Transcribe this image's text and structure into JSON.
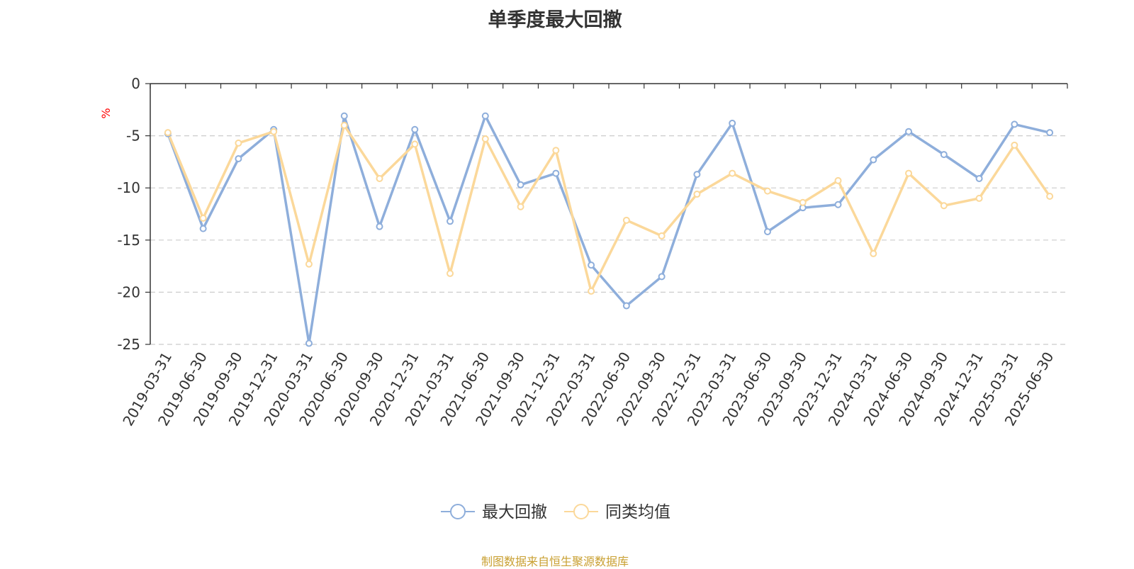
{
  "chart_data": {
    "type": "line",
    "title": "单季度最大回撤",
    "ylabel": "%",
    "ylim": [
      -25,
      0
    ],
    "yticks": [
      0,
      -5,
      -10,
      -15,
      -20,
      -25
    ],
    "grid": true,
    "legend_position": "bottom-center",
    "categories": [
      "2019-03-31",
      "2019-06-30",
      "2019-09-30",
      "2019-12-31",
      "2020-03-31",
      "2020-06-30",
      "2020-09-30",
      "2020-12-31",
      "2021-03-31",
      "2021-06-30",
      "2021-09-30",
      "2021-12-31",
      "2022-03-31",
      "2022-06-30",
      "2022-09-30",
      "2022-12-31",
      "2023-03-31",
      "2023-06-30",
      "2023-09-30",
      "2023-12-31",
      "2024-03-31",
      "2024-06-30",
      "2024-09-30",
      "2024-12-31",
      "2025-03-31",
      "2025-06-30"
    ],
    "series": [
      {
        "name": "最大回撤",
        "color": "#8eaedb",
        "values": [
          -4.8,
          -13.9,
          -7.2,
          -4.4,
          -24.9,
          -3.1,
          -13.7,
          -4.4,
          -13.2,
          -3.1,
          -9.7,
          -8.6,
          -17.4,
          -21.3,
          -18.5,
          -8.7,
          -3.8,
          -14.2,
          -11.9,
          -11.6,
          -7.3,
          -4.6,
          -6.8,
          -9.1,
          -3.9,
          -4.7
        ]
      },
      {
        "name": "同类均值",
        "color": "#fbd89a",
        "values": [
          -4.7,
          -12.9,
          -5.7,
          -4.6,
          -17.3,
          -4.0,
          -9.1,
          -5.8,
          -18.2,
          -5.3,
          -11.8,
          -6.4,
          -19.9,
          -13.1,
          -14.6,
          -10.6,
          -8.6,
          -10.3,
          -11.4,
          -9.3,
          -16.3,
          -8.6,
          -11.7,
          -11.0,
          -5.9,
          -10.8
        ]
      }
    ],
    "source_note": "制图数据来自恒生聚源数据库",
    "ylabel_color": "#ff0000",
    "source_color": "#c9a032"
  }
}
